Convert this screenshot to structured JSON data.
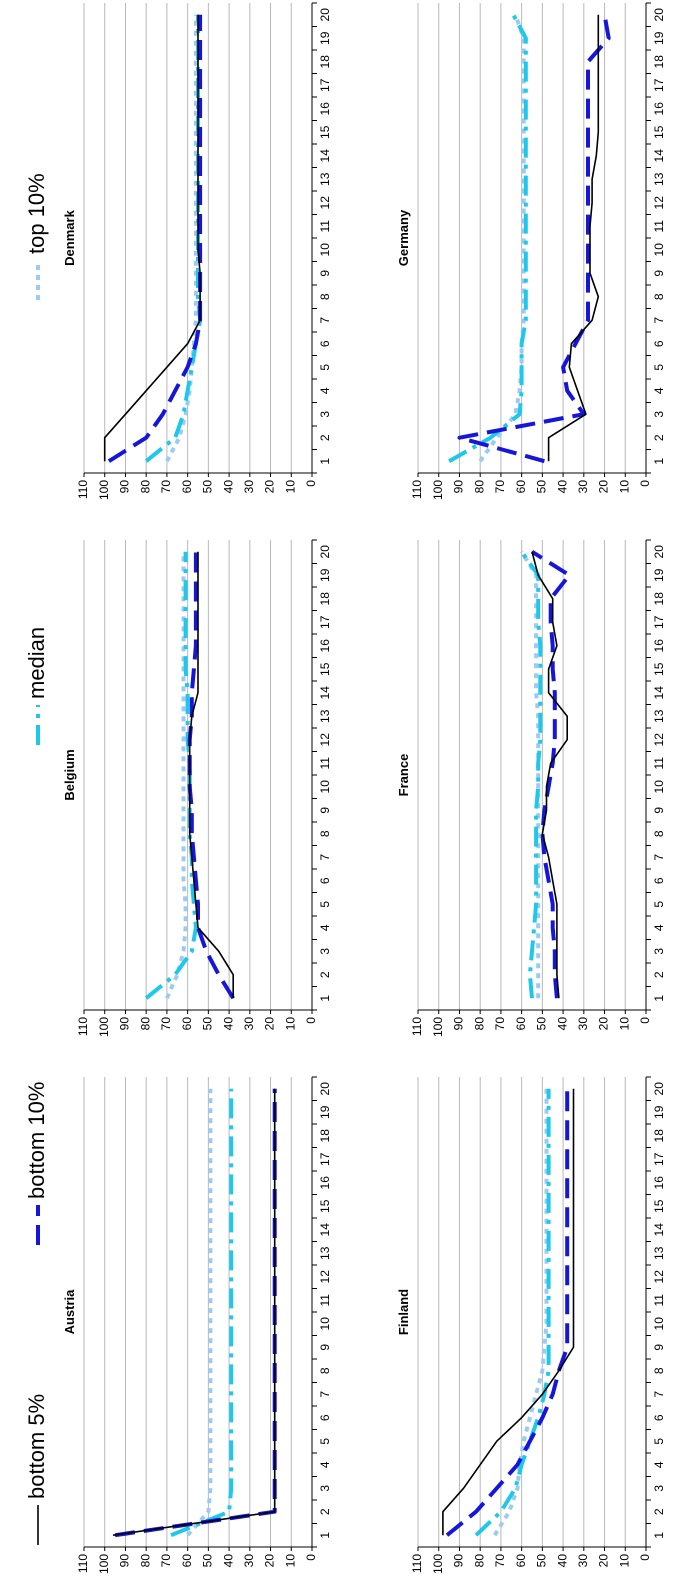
{
  "legend": [
    {
      "label": "bottom 5%",
      "color": "#000000",
      "style": "solid"
    },
    {
      "label": "bottom 10%",
      "color": "#1515dc",
      "style": "long-dash"
    },
    {
      "label": "median",
      "color": "#1ec8ea",
      "style": "dash-dot"
    },
    {
      "label": "top 10%",
      "color": "#9bcbf2",
      "style": "dotted"
    }
  ],
  "chart_data": [
    {
      "type": "line",
      "title": "Austria",
      "x": [
        1,
        2,
        3,
        4,
        5,
        6,
        7,
        8,
        9,
        10,
        11,
        12,
        13,
        14,
        15,
        16,
        17,
        18,
        19,
        20
      ],
      "ylim": [
        0,
        110
      ],
      "yticks": [
        0,
        10,
        20,
        30,
        40,
        50,
        60,
        70,
        80,
        90,
        100,
        110
      ],
      "series": [
        {
          "name": "bottom 5%",
          "values": [
            96,
            18,
            18,
            18,
            18,
            18,
            18,
            18,
            18,
            18,
            18,
            18,
            18,
            18,
            18,
            18,
            18,
            18,
            18,
            18
          ]
        },
        {
          "name": "bottom 10%",
          "values": [
            95,
            18,
            18,
            18,
            18,
            18,
            18,
            18,
            18,
            18,
            18,
            18,
            18,
            18,
            18,
            18,
            18,
            18,
            18,
            18
          ]
        },
        {
          "name": "median",
          "values": [
            68,
            40,
            39,
            39,
            39,
            39,
            39,
            39,
            39,
            39,
            39,
            39,
            39,
            39,
            39,
            39,
            39,
            39,
            39,
            39
          ]
        },
        {
          "name": "top 10%",
          "values": [
            60,
            50,
            49,
            49,
            49,
            49,
            49,
            49,
            49,
            49,
            49,
            49,
            49,
            49,
            49,
            49,
            49,
            49,
            49,
            49
          ]
        }
      ]
    },
    {
      "type": "line",
      "title": "Belgium",
      "x": [
        1,
        2,
        3,
        4,
        5,
        6,
        7,
        8,
        9,
        10,
        11,
        12,
        13,
        14,
        15,
        16,
        17,
        18,
        19,
        20
      ],
      "ylim": [
        0,
        110
      ],
      "yticks": [
        0,
        10,
        20,
        30,
        40,
        50,
        60,
        70,
        80,
        90,
        100,
        110
      ],
      "series": [
        {
          "name": "bottom 5%",
          "values": [
            38,
            38,
            45,
            55,
            56,
            57,
            58,
            59,
            59,
            59,
            59,
            59,
            58,
            55,
            55,
            55,
            55,
            55,
            55,
            55
          ]
        },
        {
          "name": "bottom 10%",
          "values": [
            38,
            45,
            51,
            55,
            55,
            56,
            57,
            58,
            58,
            59,
            59,
            59,
            58,
            58,
            57,
            56,
            56,
            56,
            56,
            56
          ]
        },
        {
          "name": "median",
          "values": [
            80,
            66,
            58,
            56,
            57,
            58,
            58,
            59,
            59,
            59,
            59,
            60,
            60,
            60,
            61,
            61,
            61,
            61,
            61,
            61
          ]
        },
        {
          "name": "top 10%",
          "values": [
            70,
            65,
            62,
            61,
            61,
            62,
            62,
            62,
            62,
            62,
            62,
            62,
            62,
            62,
            62,
            62,
            62,
            62,
            62,
            62
          ]
        }
      ]
    },
    {
      "type": "line",
      "title": "Denmark",
      "x": [
        1,
        2,
        3,
        4,
        5,
        6,
        7,
        8,
        9,
        10,
        11,
        12,
        13,
        14,
        15,
        16,
        17,
        18,
        19,
        20
      ],
      "ylim": [
        0,
        110
      ],
      "yticks": [
        0,
        10,
        20,
        30,
        40,
        50,
        60,
        70,
        80,
        90,
        100,
        110
      ],
      "series": [
        {
          "name": "bottom 5%",
          "values": [
            100,
            100,
            90,
            80,
            70,
            60,
            54,
            54,
            54,
            55,
            55,
            55,
            55,
            55,
            55,
            55,
            55,
            55,
            55,
            55
          ]
        },
        {
          "name": "bottom 10%",
          "values": [
            98,
            80,
            72,
            66,
            60,
            56,
            54,
            54,
            54,
            54,
            54,
            54,
            54,
            54,
            54,
            54,
            54,
            54,
            54,
            54
          ]
        },
        {
          "name": "median",
          "values": [
            80,
            66,
            62,
            60,
            58,
            56,
            54,
            55,
            55,
            55,
            55,
            55,
            55,
            55,
            55,
            55,
            55,
            55,
            55,
            55
          ]
        },
        {
          "name": "top 10%",
          "values": [
            70,
            64,
            61,
            59,
            58,
            57,
            56,
            56,
            56,
            56,
            56,
            56,
            56,
            56,
            56,
            56,
            56,
            56,
            56,
            56
          ]
        }
      ]
    },
    {
      "type": "line",
      "title": "Finland",
      "x": [
        1,
        2,
        3,
        4,
        5,
        6,
        7,
        8,
        9,
        10,
        11,
        12,
        13,
        14,
        15,
        16,
        17,
        18,
        19,
        20
      ],
      "ylim": [
        0,
        110
      ],
      "yticks": [
        0,
        10,
        20,
        30,
        40,
        50,
        60,
        70,
        80,
        90,
        100,
        110
      ],
      "series": [
        {
          "name": "bottom 5%",
          "values": [
            98,
            98,
            88,
            80,
            72,
            60,
            50,
            42,
            35,
            35,
            35,
            35,
            35,
            35,
            35,
            35,
            35,
            35,
            35,
            35
          ]
        },
        {
          "name": "bottom 10%",
          "values": [
            96,
            82,
            72,
            62,
            56,
            50,
            45,
            42,
            38,
            38,
            38,
            38,
            38,
            38,
            38,
            38,
            38,
            38,
            38,
            38
          ]
        },
        {
          "name": "median",
          "values": [
            82,
            70,
            63,
            60,
            56,
            52,
            49,
            47,
            47,
            47,
            47,
            47,
            47,
            47,
            47,
            47,
            47,
            47,
            47,
            47
          ]
        },
        {
          "name": "top 10%",
          "values": [
            73,
            66,
            62,
            61,
            59,
            56,
            53,
            50,
            49,
            48,
            48,
            48,
            48,
            48,
            48,
            48,
            48,
            48,
            48,
            48
          ]
        }
      ]
    },
    {
      "type": "line",
      "title": "France",
      "x": [
        1,
        2,
        3,
        4,
        5,
        6,
        7,
        8,
        9,
        10,
        11,
        12,
        13,
        14,
        15,
        16,
        17,
        18,
        19,
        20
      ],
      "ylim": [
        0,
        110
      ],
      "yticks": [
        0,
        10,
        20,
        30,
        40,
        50,
        60,
        70,
        80,
        90,
        100,
        110
      ],
      "series": [
        {
          "name": "bottom 5%",
          "values": [
            42,
            43,
            43,
            43,
            43,
            45,
            47,
            50,
            48,
            48,
            46,
            38,
            38,
            47,
            47,
            43,
            45,
            45,
            52,
            55
          ]
        },
        {
          "name": "bottom 10%",
          "values": [
            43,
            44,
            44,
            45,
            45,
            47,
            49,
            50,
            49,
            47,
            45,
            44,
            44,
            44,
            45,
            45,
            46,
            46,
            37,
            55
          ]
        },
        {
          "name": "median",
          "values": [
            55,
            56,
            55,
            54,
            53,
            53,
            53,
            53,
            53,
            52,
            52,
            51,
            51,
            51,
            51,
            51,
            52,
            52,
            52,
            60
          ]
        },
        {
          "name": "top 10%",
          "values": [
            52,
            52,
            52,
            52,
            52,
            52,
            52,
            52,
            52,
            52,
            52,
            52,
            52,
            53,
            53,
            53,
            53,
            53,
            53,
            60
          ]
        }
      ]
    },
    {
      "type": "line",
      "title": "Germany",
      "x": [
        1,
        2,
        3,
        4,
        5,
        6,
        7,
        8,
        9,
        10,
        11,
        12,
        13,
        14,
        15,
        16,
        17,
        18,
        19,
        20
      ],
      "ylim": [
        0,
        110
      ],
      "yticks": [
        0,
        10,
        20,
        30,
        40,
        50,
        60,
        70,
        80,
        90,
        100,
        110
      ],
      "series": [
        {
          "name": "bottom 5%",
          "values": [
            47,
            47,
            29,
            33,
            37,
            36,
            26,
            23,
            27,
            27,
            27,
            26,
            26,
            24,
            23,
            23,
            23,
            23,
            23,
            23
          ]
        },
        {
          "name": "bottom 10%",
          "values": [
            49,
            90,
            30,
            38,
            40,
            34,
            28,
            28,
            28,
            28,
            28,
            28,
            28,
            28,
            28,
            28,
            28,
            28,
            18,
            20
          ]
        },
        {
          "name": "median",
          "values": [
            95,
            75,
            61,
            60,
            60,
            60,
            58,
            58,
            58,
            58,
            58,
            58,
            58,
            58,
            58,
            58,
            58,
            58,
            58,
            64
          ]
        },
        {
          "name": "top 10%",
          "values": [
            80,
            72,
            63,
            61,
            60,
            60,
            59,
            59,
            59,
            59,
            59,
            59,
            59,
            59,
            59,
            59,
            59,
            59,
            59,
            63
          ]
        }
      ]
    }
  ]
}
